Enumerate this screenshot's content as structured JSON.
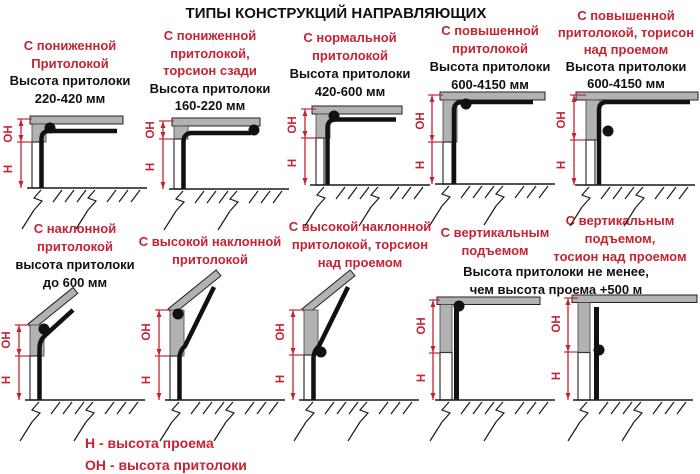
{
  "title": "ТИПЫ КОНСТРУКЦИЙ НАПРАВЛЯЮЩИХ",
  "colors": {
    "accent_red": "#c42433",
    "bar_gray": "#b2b2b2",
    "ink_black": "#111111"
  },
  "dim": {
    "oh": "ОН",
    "h": "Н"
  },
  "legend": {
    "line1": "Н - высота проема",
    "line2": "ОН - высота притолоки"
  },
  "cards": [
    {
      "id": "low-lintel",
      "red_lines": [
        "С пониженной",
        "Притолокой"
      ],
      "black_lines": [
        "Высота притолоки",
        "220-420 мм"
      ]
    },
    {
      "id": "low-lintel-torsion-rear",
      "red_lines": [
        "С пониженной",
        "притолокой,",
        "торсион сзади"
      ],
      "black_lines": [
        "Высота притолоки",
        "160-220 мм"
      ]
    },
    {
      "id": "normal-lintel",
      "red_lines": [
        "С нормальной",
        "притолокой"
      ],
      "black_lines": [
        "Высота притолоки",
        "420-600 мм"
      ]
    },
    {
      "id": "raised-lintel",
      "red_lines": [
        "С повышенной",
        "притолокой"
      ],
      "black_lines": [
        "Высота притолоки",
        "600-4150 мм"
      ]
    },
    {
      "id": "raised-lintel-torsion-over",
      "red_lines": [
        "С повышенной",
        "притолокой, торисон",
        "над проемом"
      ],
      "black_lines": [
        "Высота притолоки",
        "600-4150 мм"
      ]
    },
    {
      "id": "inclined-lintel",
      "red_lines": [
        "С наклонной",
        "притолокой"
      ],
      "black_lines": [
        "высота притолоки",
        "до 600 мм"
      ]
    },
    {
      "id": "high-inclined-lintel",
      "red_lines": [
        "С высокой наклонной",
        "притолокой"
      ],
      "black_lines": []
    },
    {
      "id": "high-inclined-torsion-over",
      "red_lines": [
        "С высокой наклонной",
        "притолокой, торсион",
        "над проемом"
      ],
      "black_lines": []
    },
    {
      "id": "vertical-lift",
      "red_lines": [
        "С вертикальным",
        "подъемом"
      ],
      "black_lines": []
    },
    {
      "id": "vertical-lift-torsion-over",
      "red_lines": [
        "С вертикальным",
        "подъемом,",
        "тосион над проемом"
      ],
      "black_lines": [
        "Высота притолоки не менее,",
        "чем высота проема +500 м"
      ]
    }
  ]
}
